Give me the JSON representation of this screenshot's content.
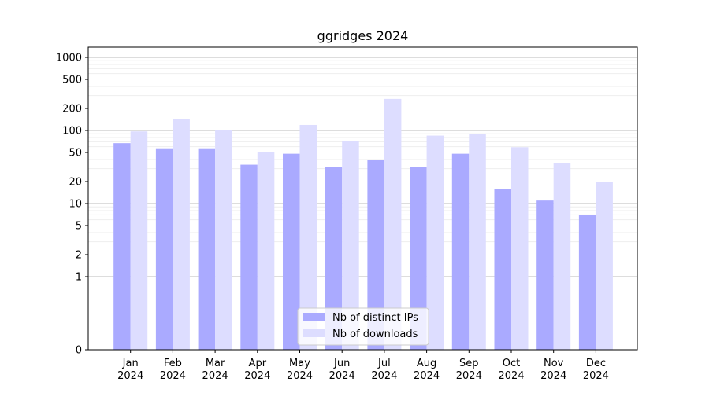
{
  "chart_data": {
    "type": "bar",
    "title": "ggridges 2024",
    "xlabel": "",
    "ylabel": "",
    "y_scale": "symlog",
    "ylim": [
      0,
      1300
    ],
    "y_ticks": [
      0,
      1,
      2,
      5,
      10,
      20,
      50,
      100,
      200,
      500,
      1000
    ],
    "grid": true,
    "legend_position": "bottom-center",
    "categories": [
      {
        "month": "Jan",
        "year": "2024"
      },
      {
        "month": "Feb",
        "year": "2024"
      },
      {
        "month": "Mar",
        "year": "2024"
      },
      {
        "month": "Apr",
        "year": "2024"
      },
      {
        "month": "May",
        "year": "2024"
      },
      {
        "month": "Jun",
        "year": "2024"
      },
      {
        "month": "Jul",
        "year": "2024"
      },
      {
        "month": "Aug",
        "year": "2024"
      },
      {
        "month": "Sep",
        "year": "2024"
      },
      {
        "month": "Oct",
        "year": "2024"
      },
      {
        "month": "Nov",
        "year": "2024"
      },
      {
        "month": "Dec",
        "year": "2024"
      }
    ],
    "series": [
      {
        "name": "Nb of distinct IPs",
        "color": "#aaaaff",
        "values": [
          67,
          57,
          57,
          34,
          48,
          32,
          40,
          32,
          48,
          16,
          11,
          7
        ]
      },
      {
        "name": "Nb of downloads",
        "color": "#ddddff",
        "values": [
          97,
          142,
          101,
          50,
          119,
          71,
          270,
          85,
          89,
          59,
          36,
          20
        ]
      }
    ]
  }
}
